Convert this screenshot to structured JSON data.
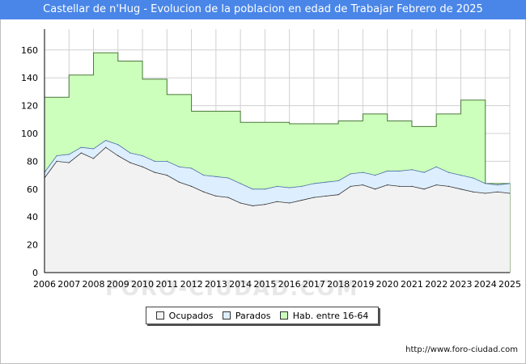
{
  "chart_data": {
    "type": "area",
    "title": "Castellar de n'Hug - Evolucion de la poblacion en edad de Trabajar Febrero de 2025",
    "x_ticks": [
      "2006",
      "2007",
      "2008",
      "2009",
      "2010",
      "2011",
      "2012",
      "2013",
      "2014",
      "2015",
      "2016",
      "2017",
      "2018",
      "2019",
      "2020",
      "2021",
      "2022",
      "2023",
      "2024",
      "2025"
    ],
    "y_ticks": [
      0,
      20,
      40,
      60,
      80,
      100,
      120,
      140,
      160
    ],
    "xlim": [
      2006,
      2025
    ],
    "ylim": [
      0,
      175
    ],
    "grid": true,
    "legend_position": "bottom",
    "series": [
      {
        "name": "Ocupados",
        "color": "#f2f2f2",
        "stroke": "#333333",
        "x": [
          2006.0,
          2006.5,
          2007.0,
          2007.5,
          2008.0,
          2008.5,
          2009.0,
          2009.5,
          2010.0,
          2010.5,
          2011.0,
          2011.5,
          2012.0,
          2012.5,
          2013.0,
          2013.5,
          2014.0,
          2014.5,
          2015.0,
          2015.5,
          2016.0,
          2016.5,
          2017.0,
          2017.5,
          2018.0,
          2018.5,
          2019.0,
          2019.5,
          2020.0,
          2020.5,
          2021.0,
          2021.5,
          2022.0,
          2022.5,
          2023.0,
          2023.5,
          2024.0,
          2024.5,
          2025.0
        ],
        "values": [
          68,
          80,
          79,
          86,
          82,
          90,
          84,
          79,
          76,
          72,
          70,
          65,
          62,
          58,
          55,
          54,
          50,
          48,
          49,
          51,
          50,
          52,
          54,
          55,
          56,
          62,
          63,
          60,
          63,
          62,
          62,
          60,
          63,
          62,
          60,
          58,
          57,
          58,
          57
        ]
      },
      {
        "name": "Parados",
        "color": "#ddeeff",
        "stroke": "#4a6fa5",
        "x": [
          2006.0,
          2006.5,
          2007.0,
          2007.5,
          2008.0,
          2008.5,
          2009.0,
          2009.5,
          2010.0,
          2010.5,
          2011.0,
          2011.5,
          2012.0,
          2012.5,
          2013.0,
          2013.5,
          2014.0,
          2014.5,
          2015.0,
          2015.5,
          2016.0,
          2016.5,
          2017.0,
          2017.5,
          2018.0,
          2018.5,
          2019.0,
          2019.5,
          2020.0,
          2020.5,
          2021.0,
          2021.5,
          2022.0,
          2022.5,
          2023.0,
          2023.5,
          2024.0,
          2024.5,
          2025.0
        ],
        "values": [
          72,
          84,
          85,
          90,
          89,
          95,
          92,
          86,
          84,
          80,
          80,
          76,
          75,
          70,
          69,
          68,
          64,
          60,
          60,
          62,
          61,
          62,
          64,
          65,
          66,
          71,
          72,
          70,
          73,
          73,
          74,
          72,
          76,
          72,
          70,
          68,
          64,
          63,
          64
        ]
      },
      {
        "name": "Hab. entre 16-64",
        "color": "#ccffbb",
        "stroke": "#4a7a3a",
        "steps": [
          [
            2006,
            126
          ],
          [
            2007,
            142
          ],
          [
            2008,
            158
          ],
          [
            2009,
            152
          ],
          [
            2010,
            139
          ],
          [
            2011,
            128
          ],
          [
            2012,
            116
          ],
          [
            2013,
            116
          ],
          [
            2014,
            108
          ],
          [
            2015,
            108
          ],
          [
            2016,
            107
          ],
          [
            2017,
            107
          ],
          [
            2018,
            109
          ],
          [
            2019,
            114
          ],
          [
            2020,
            109
          ],
          [
            2021,
            105
          ],
          [
            2022,
            114
          ],
          [
            2023,
            124
          ],
          [
            2024,
            64
          ]
        ]
      }
    ]
  },
  "legend": {
    "items": [
      "Ocupados",
      "Parados",
      "Hab. entre 16-64"
    ]
  },
  "source": "http://www.foro-ciudad.com",
  "watermark": "FORO-CIUDAD.COM"
}
